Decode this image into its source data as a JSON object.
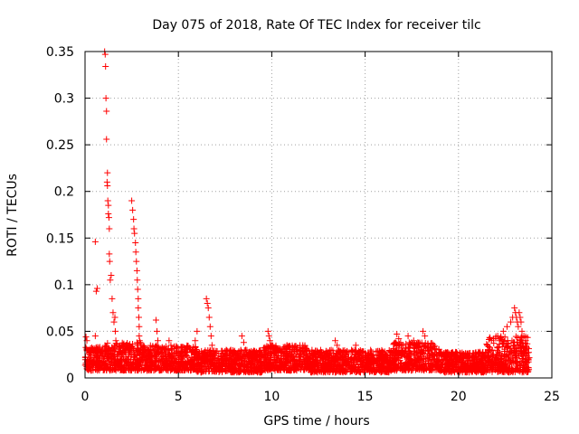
{
  "chart_data": {
    "type": "scatter",
    "title": "Day 075 of 2018, Rate Of TEC Index for receiver tilc",
    "xlabel": "GPS time / hours",
    "ylabel": "ROTI / TECUs",
    "xlim": [
      0,
      25
    ],
    "ylim": [
      0,
      0.35
    ],
    "grid": true,
    "marker": "+",
    "marker_color": "#ff0000",
    "x_ticks": [
      0,
      5,
      10,
      15,
      20,
      25
    ],
    "x_tick_labels": [
      "0",
      "5",
      "10",
      "15",
      "20",
      "25"
    ],
    "y_ticks": [
      0,
      0.05,
      0.1,
      0.15,
      0.2,
      0.25,
      0.3,
      0.35
    ],
    "y_tick_labels": [
      "0",
      "0.05",
      "0.1",
      "0.15",
      "0.2",
      "0.25",
      "0.3",
      "0.35"
    ],
    "baseline_segments": [
      {
        "from": 0.0,
        "to": 1.0,
        "low": 0.008,
        "high": 0.033
      },
      {
        "from": 1.0,
        "to": 3.0,
        "low": 0.008,
        "high": 0.038
      },
      {
        "from": 3.0,
        "to": 6.0,
        "low": 0.008,
        "high": 0.035
      },
      {
        "from": 6.0,
        "to": 9.5,
        "low": 0.006,
        "high": 0.03
      },
      {
        "from": 9.5,
        "to": 12.0,
        "low": 0.008,
        "high": 0.035
      },
      {
        "from": 12.0,
        "to": 16.5,
        "low": 0.006,
        "high": 0.03
      },
      {
        "from": 16.5,
        "to": 19.0,
        "low": 0.008,
        "high": 0.038
      },
      {
        "from": 19.0,
        "to": 21.5,
        "low": 0.006,
        "high": 0.028
      },
      {
        "from": 21.5,
        "to": 23.8,
        "low": 0.006,
        "high": 0.045
      }
    ],
    "series": [
      {
        "name": "ROTI",
        "x": [
          0.05,
          0.1,
          0.55,
          0.55,
          0.6,
          0.65,
          0.7,
          1.05,
          1.08,
          1.1,
          1.12,
          1.15,
          1.15,
          1.18,
          1.2,
          1.2,
          1.22,
          1.25,
          1.25,
          1.28,
          1.3,
          1.3,
          1.32,
          1.35,
          1.4,
          1.45,
          1.5,
          1.55,
          1.6,
          1.62,
          1.65,
          1.7,
          2.5,
          2.55,
          2.6,
          2.62,
          2.65,
          2.7,
          2.72,
          2.75,
          2.78,
          2.8,
          2.82,
          2.85,
          2.85,
          2.88,
          2.9,
          2.9,
          2.92,
          2.95,
          3.0,
          3.05,
          3.1,
          3.8,
          3.85,
          3.9,
          4.5,
          4.6,
          5.9,
          6.0,
          6.5,
          6.55,
          6.6,
          6.65,
          6.7,
          6.75,
          6.8,
          8.4,
          8.5,
          8.6,
          9.8,
          9.85,
          9.9,
          10.0,
          10.3,
          10.5,
          13.4,
          13.5,
          13.6,
          14.5,
          16.7,
          16.8,
          16.9,
          17.3,
          17.6,
          18.1,
          18.2,
          22.1,
          22.2,
          22.4,
          22.6,
          22.8,
          22.9,
          23.0,
          23.05,
          23.1,
          23.15,
          23.2,
          23.25,
          23.3,
          23.35,
          23.4,
          23.5,
          23.6
        ],
        "y": [
          0.044,
          0.04,
          0.146,
          0.045,
          0.093,
          0.096,
          0.013,
          0.35,
          0.347,
          0.334,
          0.3,
          0.286,
          0.256,
          0.21,
          0.22,
          0.206,
          0.19,
          0.185,
          0.176,
          0.172,
          0.16,
          0.133,
          0.125,
          0.105,
          0.11,
          0.085,
          0.07,
          0.06,
          0.065,
          0.05,
          0.04,
          0.035,
          0.19,
          0.18,
          0.17,
          0.16,
          0.155,
          0.145,
          0.135,
          0.125,
          0.115,
          0.105,
          0.095,
          0.085,
          0.075,
          0.065,
          0.055,
          0.045,
          0.04,
          0.038,
          0.035,
          0.032,
          0.03,
          0.062,
          0.05,
          0.04,
          0.04,
          0.035,
          0.04,
          0.05,
          0.085,
          0.08,
          0.075,
          0.065,
          0.055,
          0.045,
          0.035,
          0.045,
          0.038,
          0.03,
          0.05,
          0.045,
          0.04,
          0.035,
          0.03,
          0.028,
          0.04,
          0.035,
          0.03,
          0.035,
          0.047,
          0.042,
          0.038,
          0.045,
          0.04,
          0.05,
          0.045,
          0.045,
          0.04,
          0.05,
          0.055,
          0.06,
          0.065,
          0.075,
          0.07,
          0.065,
          0.06,
          0.055,
          0.07,
          0.065,
          0.06,
          0.05,
          0.045,
          0.04
        ]
      }
    ]
  }
}
